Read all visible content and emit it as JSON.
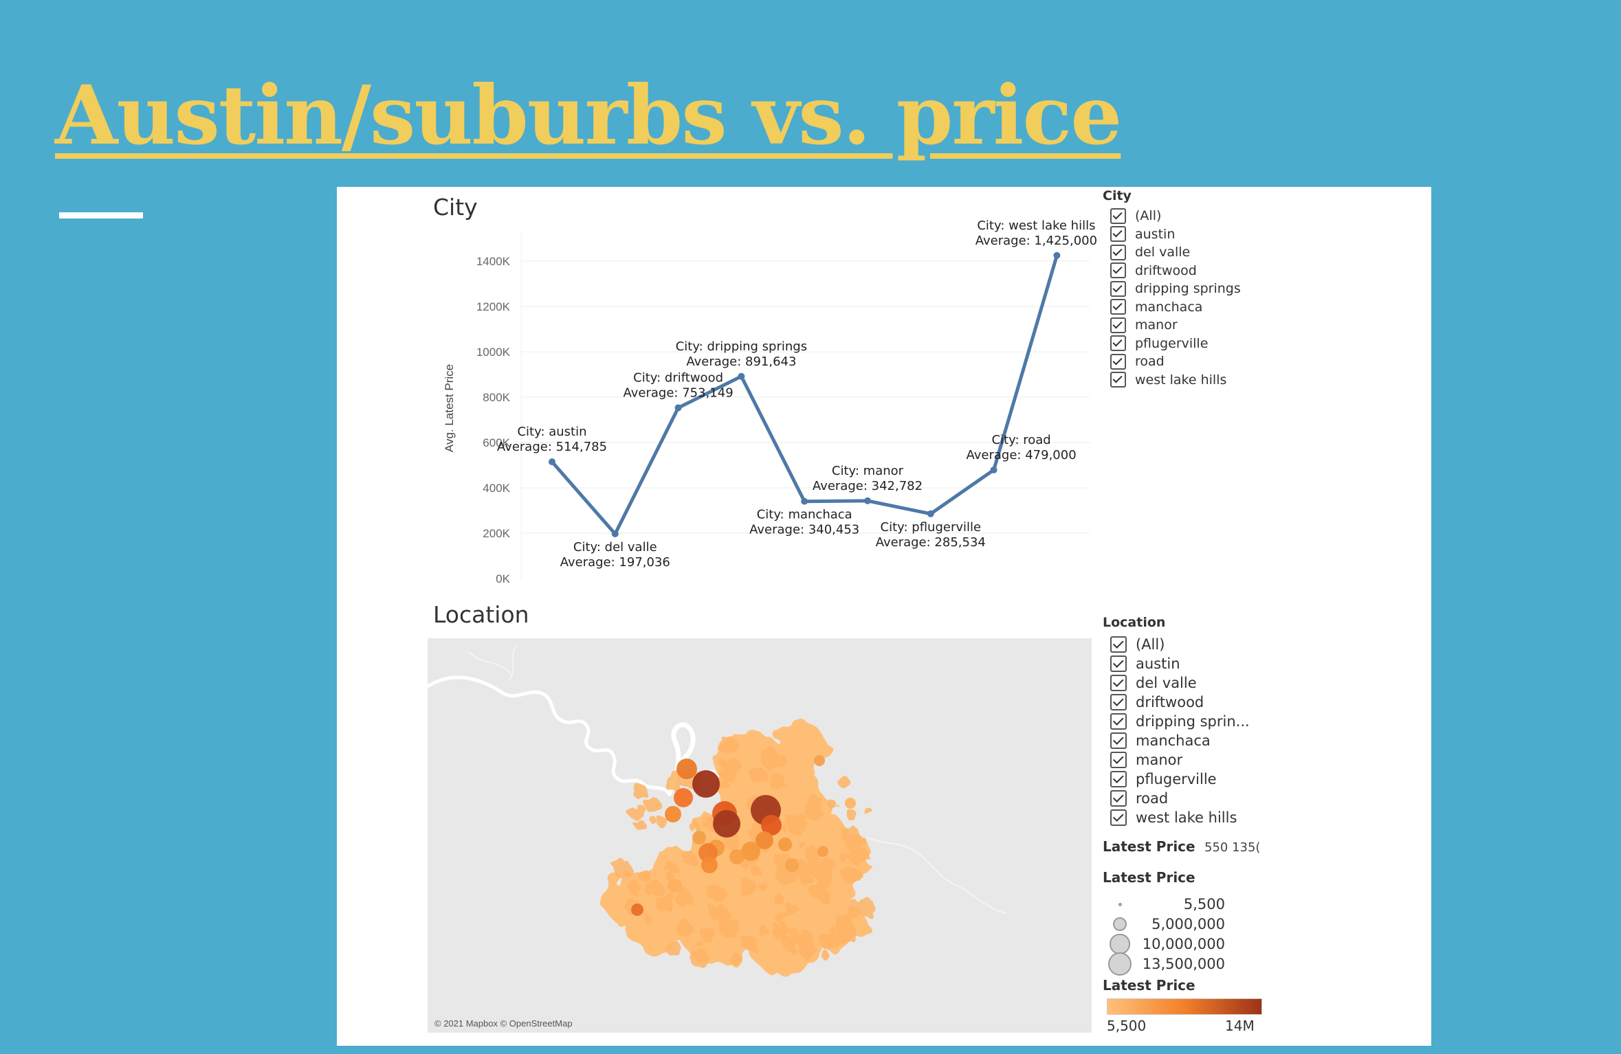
{
  "slide": {
    "title": "Austin/suburbs vs. price"
  },
  "chart_data": [
    {
      "type": "line",
      "title": "City",
      "ylabel": "Avg. Latest Price",
      "xlabel": "",
      "ylim": [
        0,
        1500000
      ],
      "yticks": [
        0,
        200000,
        400000,
        600000,
        800000,
        1000000,
        1200000,
        1400000
      ],
      "ytick_labels": [
        "0K",
        "200K",
        "400K",
        "600K",
        "800K",
        "1000K",
        "1200K",
        "1400K"
      ],
      "categories": [
        "austin",
        "del valle",
        "driftwood",
        "dripping springs",
        "manchaca",
        "manor",
        "pflugerville",
        "road",
        "west lake hills"
      ],
      "values": [
        514785,
        197036,
        753149,
        891643,
        340453,
        342782,
        285534,
        479000,
        1425000
      ],
      "point_labels": [
        [
          "City: austin",
          "Average: 514,785"
        ],
        [
          "City: del valle",
          "Average: 197,036"
        ],
        [
          "City: driftwood",
          "Average: 753,149"
        ],
        [
          "City: dripping springs",
          "Average: 891,643"
        ],
        [
          "City: manchaca",
          "Average: 340,453"
        ],
        [
          "City: manor",
          "Average: 342,782"
        ],
        [
          "City: pflugerville",
          "Average: 285,534"
        ],
        [
          "City: road",
          "Average: 479,000"
        ],
        [
          "City: west lake hills",
          "Average: 1,425,000"
        ]
      ],
      "label_placement": [
        "above",
        "below",
        "above",
        "above",
        "below",
        "above",
        "below",
        "above",
        "above"
      ],
      "line_color": "#4e79a7",
      "grid": true
    },
    {
      "type": "map",
      "title": "Location",
      "attribution": "© 2021 Mapbox © OpenStreetMap",
      "color_scale": {
        "title": "Latest Price",
        "min_label": "5,500",
        "max_label": "14M",
        "colors": [
          "#ffc07a",
          "#f2802a",
          "#9e3219"
        ]
      },
      "size_legend": {
        "title": "Latest Price",
        "entries": [
          {
            "label": "5,500",
            "value": 5500
          },
          {
            "label": "5,000,000",
            "value": 5000000
          },
          {
            "label": "10,000,000",
            "value": 10000000
          },
          {
            "label": "13,500,000",
            "value": 13500000
          }
        ]
      },
      "price_filter": {
        "title": "Latest Price",
        "range_text": "550 135("
      }
    }
  ],
  "city_filter": {
    "title": "City",
    "items": [
      "(All)",
      "austin",
      "del valle",
      "driftwood",
      "dripping springs",
      "manchaca",
      "manor",
      "pflugerville",
      "road",
      "west lake hills"
    ]
  },
  "location_filter": {
    "title": "Location",
    "items": [
      "(All)",
      "austin",
      "del valle",
      "driftwood",
      "dripping sprin...",
      "manchaca",
      "manor",
      "pflugerville",
      "road",
      "west lake hills"
    ]
  }
}
